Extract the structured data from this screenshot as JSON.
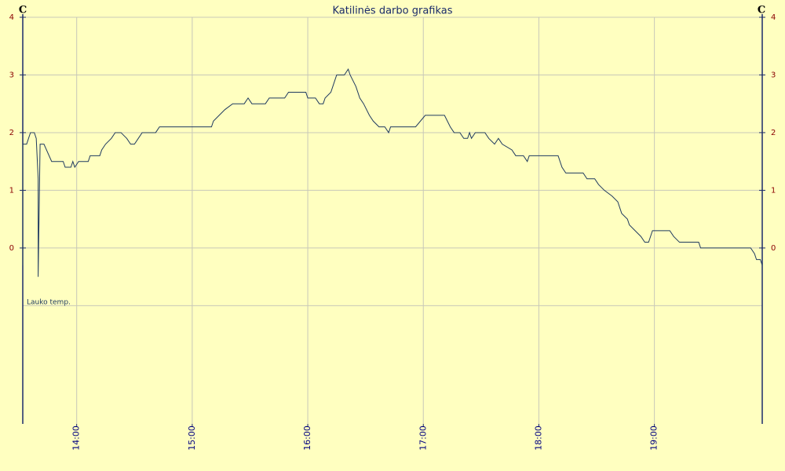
{
  "chart_data": {
    "type": "line",
    "title": "Katilinės darbo grafikas",
    "y_unit": "C",
    "xlim": [
      "13:32",
      "19:56"
    ],
    "xticks": [
      "14:00",
      "15:00",
      "16:00",
      "17:00",
      "18:00",
      "19:00"
    ],
    "ylim": [
      -3.05,
      4
    ],
    "yticks": [
      0,
      1,
      2,
      3,
      4
    ],
    "ygrid": [
      -1,
      0,
      1,
      2,
      3,
      4
    ],
    "grid": true,
    "x": [
      "13:32",
      "13:32",
      "13:34",
      "13:35",
      "13:36",
      "13:38",
      "13:39",
      "13:40",
      "13:40",
      "13:41",
      "13:43",
      "13:47",
      "13:53",
      "13:54",
      "13:57",
      "13:58",
      "13:59",
      "14:01",
      "14:06",
      "14:07",
      "14:12",
      "14:13",
      "14:15",
      "14:18",
      "14:20",
      "14:23",
      "14:26",
      "14:28",
      "14:30",
      "14:32",
      "14:34",
      "14:41",
      "14:43",
      "15:10",
      "15:11",
      "15:14",
      "15:17",
      "15:21",
      "15:27",
      "15:29",
      "15:31",
      "15:38",
      "15:40",
      "15:48",
      "15:50",
      "15:59",
      "16:00",
      "16:04",
      "16:06",
      "16:08",
      "16:09",
      "16:12",
      "16:13",
      "16:15",
      "16:19",
      "16:21",
      "16:22",
      "16:25",
      "16:27",
      "16:29",
      "16:32",
      "16:34",
      "16:37",
      "16:40",
      "16:42",
      "16:43",
      "16:56",
      "17:01",
      "17:11",
      "17:14",
      "17:16",
      "17:19",
      "17:21",
      "17:23",
      "17:24",
      "17:25",
      "17:27",
      "17:32",
      "17:34",
      "17:37",
      "17:39",
      "17:41",
      "17:46",
      "17:48",
      "17:52",
      "17:54",
      "17:55",
      "18:10",
      "18:12",
      "18:14",
      "18:23",
      "18:25",
      "18:29",
      "18:31",
      "18:34",
      "18:38",
      "18:41",
      "18:43",
      "18:46",
      "18:47",
      "18:50",
      "18:53",
      "18:55",
      "18:57",
      "18:59",
      "19:08",
      "19:10",
      "19:13",
      "19:23",
      "19:24",
      "19:50",
      "19:52",
      "19:53",
      "19:55",
      "19:56"
    ],
    "series": [
      {
        "name": "Lauko temp.",
        "color": "#1f3a60",
        "values": [
          -0.3,
          1.8,
          1.8,
          1.9,
          2.0,
          2.0,
          1.9,
          1.2,
          -0.5,
          1.8,
          1.8,
          1.5,
          1.5,
          1.4,
          1.4,
          1.5,
          1.4,
          1.5,
          1.5,
          1.6,
          1.6,
          1.7,
          1.8,
          1.9,
          2.0,
          2.0,
          1.9,
          1.8,
          1.8,
          1.9,
          2.0,
          2.0,
          2.1,
          2.1,
          2.2,
          2.3,
          2.4,
          2.5,
          2.5,
          2.6,
          2.5,
          2.5,
          2.6,
          2.6,
          2.7,
          2.7,
          2.6,
          2.6,
          2.5,
          2.5,
          2.6,
          2.7,
          2.8,
          3.0,
          3.0,
          3.1,
          3.0,
          2.8,
          2.6,
          2.5,
          2.3,
          2.2,
          2.1,
          2.1,
          2.0,
          2.1,
          2.1,
          2.3,
          2.3,
          2.1,
          2.0,
          2.0,
          1.9,
          1.9,
          2.0,
          1.9,
          2.0,
          2.0,
          1.9,
          1.8,
          1.9,
          1.8,
          1.7,
          1.6,
          1.6,
          1.5,
          1.6,
          1.6,
          1.4,
          1.3,
          1.3,
          1.2,
          1.2,
          1.1,
          1.0,
          0.9,
          0.8,
          0.6,
          0.5,
          0.4,
          0.3,
          0.2,
          0.1,
          0.1,
          0.3,
          0.3,
          0.2,
          0.1,
          0.1,
          0.0,
          0.0,
          -0.1,
          -0.2,
          -0.2,
          -0.3
        ]
      }
    ]
  }
}
